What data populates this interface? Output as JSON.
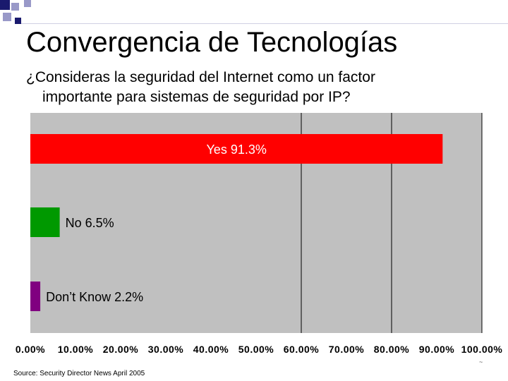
{
  "slide": {
    "title": "Convergencia de Tecnologías",
    "question_line1": "¿Consideras la seguridad del Internet como un factor",
    "question_line2": "importante para sistemas de seguridad por IP?",
    "source": "Source: Security Director News April 2005",
    "page_mark": "~"
  },
  "colors": {
    "decor_dark": "#1a1a6e",
    "decor_light": "#9999c8",
    "plot_background": "#c0c0c0",
    "gridline": "#000000"
  },
  "chart_data": {
    "type": "bar",
    "orientation": "horizontal",
    "title": "",
    "xlabel": "",
    "ylabel": "",
    "xlim": [
      0,
      100
    ],
    "grid": "vertical gridlines at 60, 80 and 100",
    "gridlines": [
      60,
      80,
      100
    ],
    "ticks": [
      0,
      10,
      20,
      30,
      40,
      50,
      60,
      70,
      80,
      90,
      100
    ],
    "tick_labels": [
      "0.00%",
      "10.00%",
      "20.00%",
      "30.00%",
      "40.00%",
      "50.00%",
      "60.00%",
      "70.00%",
      "80.00%",
      "90.00%",
      "100.00%"
    ],
    "bars": [
      {
        "label": "Yes 91.3%",
        "value": 91.3,
        "color": "#ff0000",
        "label_position": "inside"
      },
      {
        "label": "No 6.5%",
        "value": 6.5,
        "color": "#009900",
        "label_position": "outside"
      },
      {
        "label": "Don’t Know 2.2%",
        "value": 2.2,
        "color": "#800080",
        "label_position": "outside"
      }
    ]
  }
}
